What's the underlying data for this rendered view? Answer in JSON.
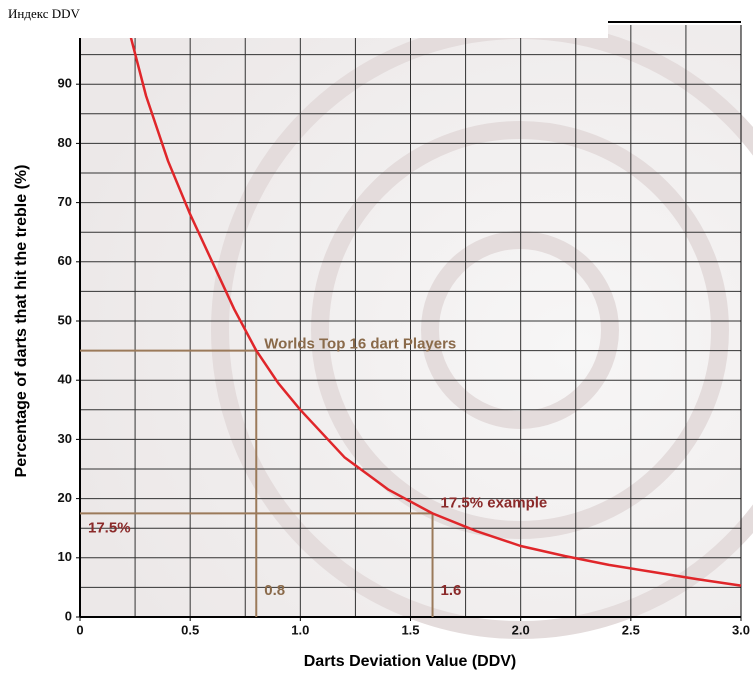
{
  "header": {
    "title": "Индекс DDV"
  },
  "chart_data": {
    "type": "line",
    "x_label": "Darts Deviation Value (DDV)",
    "y_label": "Percentage of darts that hit the treble (%)",
    "x": [
      0.23,
      0.3,
      0.4,
      0.5,
      0.6,
      0.7,
      0.8,
      0.9,
      1.0,
      1.2,
      1.4,
      1.6,
      1.8,
      2.0,
      2.2,
      2.4,
      2.6,
      2.8,
      3.0
    ],
    "values": [
      98,
      88,
      77,
      68,
      60,
      52,
      45,
      39.5,
      35,
      27,
      21.5,
      17.5,
      14.5,
      12,
      10.3,
      8.8,
      7.6,
      6.4,
      5.3
    ],
    "color": "#e0262a",
    "xlim": [
      0,
      3
    ],
    "ylim": [
      0,
      100
    ],
    "xticks": [
      0,
      0.5,
      {
        "value": 1,
        "label": "1.0"
      },
      1.5,
      {
        "value": 2,
        "label": "2.0"
      },
      2.5,
      {
        "value": 3,
        "label": "3.0"
      }
    ],
    "yticks": [
      0,
      10,
      20,
      30,
      40,
      50,
      60,
      70,
      80,
      90
    ],
    "x_grid": [
      0.25,
      0.5,
      0.75,
      1,
      1.25,
      1.5,
      1.75,
      2,
      2.25,
      2.5,
      2.75
    ],
    "y_grid": [
      5,
      10,
      15,
      20,
      25,
      30,
      35,
      40,
      45,
      50,
      55,
      60,
      65,
      70,
      75,
      80,
      85,
      90,
      95
    ],
    "grid": true,
    "annotations": [
      {
        "text": "Worlds Top 16 dart Players",
        "x": 0.8,
        "y": 45
      },
      {
        "text": "17.5% example",
        "x": 1.6,
        "y": 17.5,
        "y_label": "17.5%"
      }
    ],
    "annotation_color": "#9b7a5a"
  }
}
